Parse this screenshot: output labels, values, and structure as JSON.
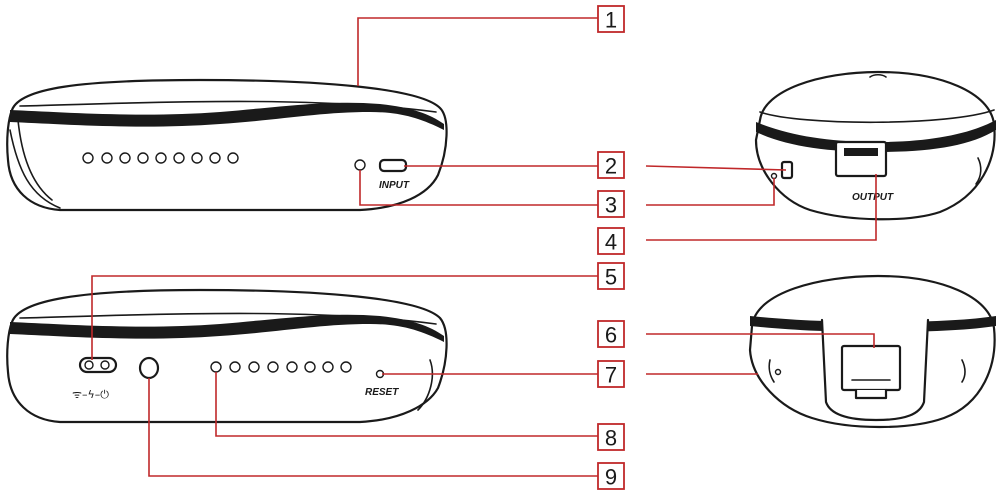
{
  "labels": {
    "input": "INPUT",
    "output": "OUTPUT",
    "reset": "RESET",
    "mode_switch_icons": "ᯤ–ϟ–⏻"
  },
  "callouts": [
    "1",
    "2",
    "3",
    "4",
    "5",
    "6",
    "7",
    "8",
    "9"
  ],
  "colors": {
    "leader_line": "#c0282a",
    "outline": "#1a1a1a"
  }
}
